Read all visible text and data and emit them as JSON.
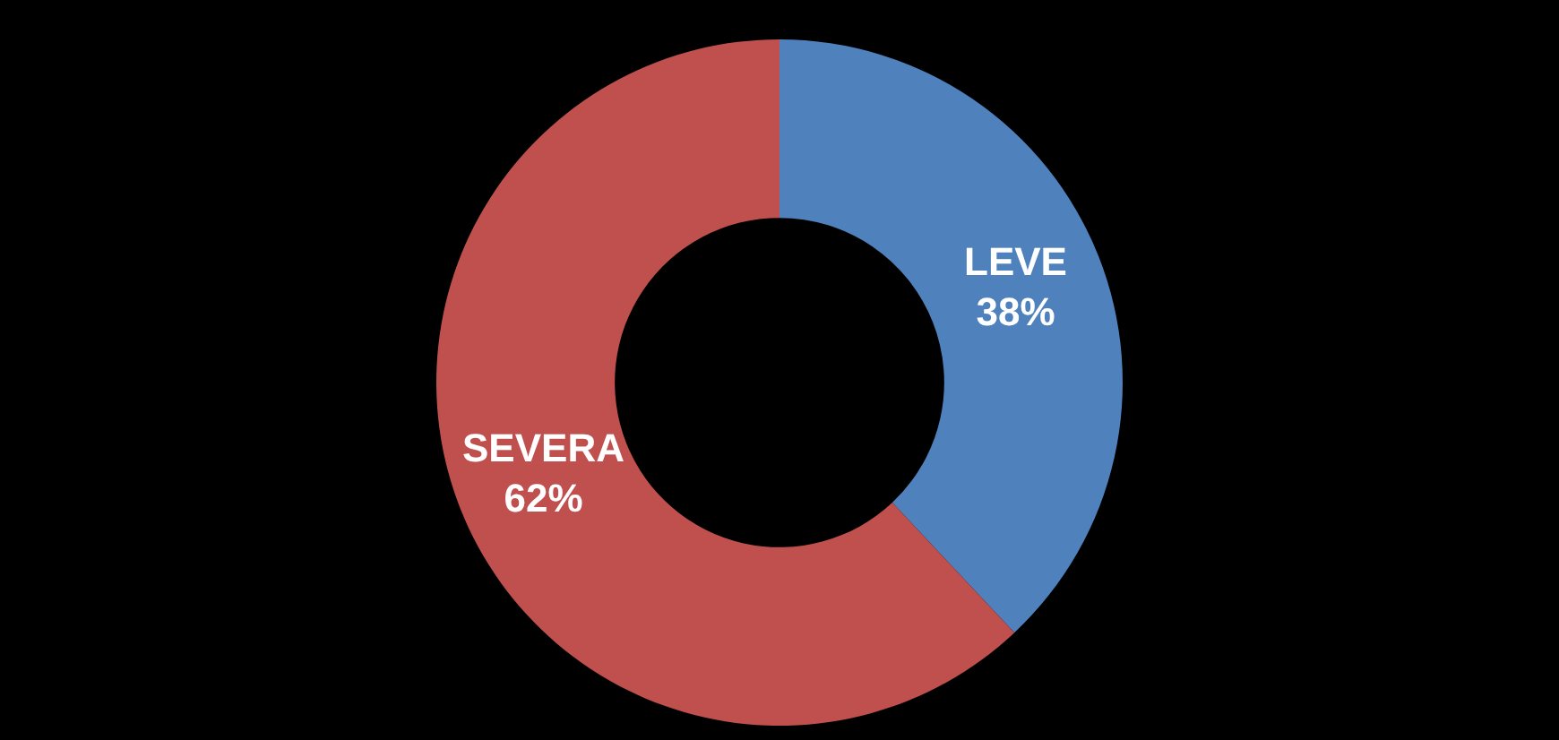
{
  "chart_data": {
    "type": "donut",
    "categories": [
      "LEVE",
      "SEVERA"
    ],
    "values": [
      38,
      62
    ],
    "colors": [
      "#4f81bd",
      "#c0504d"
    ],
    "value_labels": [
      "38%",
      "62%"
    ],
    "legend": false
  }
}
